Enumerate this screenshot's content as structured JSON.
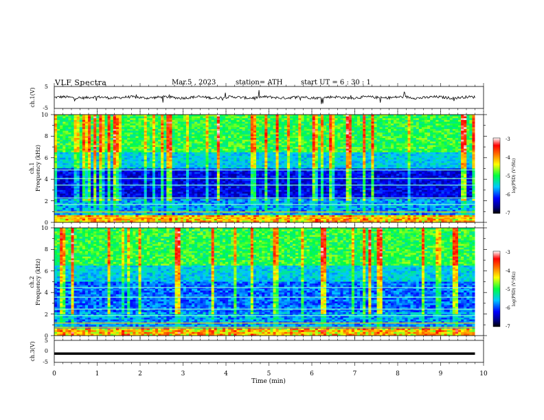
{
  "header": {
    "title": "VLF  Spectra",
    "date": "Mar.5  , 2023",
    "station": "station= ATH",
    "start": "start  UT  =   6  : 30 : 1"
  },
  "colorbar": {
    "label": "log(PSD) (V²/Hz)",
    "ticks": [
      "-3",
      "-4",
      "-5",
      "-6",
      "-7"
    ]
  },
  "chart_data": [
    {
      "type": "line",
      "name": "ch1-waveform",
      "ylabel": "ch.1(V)",
      "ylim": [
        -5,
        5
      ],
      "y_ticks": [
        "5",
        "-5"
      ],
      "x_range": [
        0,
        9.8
      ],
      "level": 0
    },
    {
      "type": "heatmap",
      "name": "ch1-spectrogram",
      "ylabel_top": "ch.1",
      "ylabel": "Frequency  (kHz)",
      "ylim": [
        0,
        10
      ],
      "y_ticks": [
        "0",
        "2",
        "4",
        "6",
        "8",
        "10"
      ],
      "x_range": [
        0,
        9.8
      ],
      "zlim": [
        -7,
        -3
      ]
    },
    {
      "type": "heatmap",
      "name": "ch2-spectrogram",
      "ylabel_top": "ch.2",
      "ylabel": "Frequency  (kHz)",
      "ylim": [
        0,
        10
      ],
      "y_ticks": [
        "0",
        "2",
        "4",
        "6",
        "8",
        "10"
      ],
      "x_range": [
        0,
        9.8
      ],
      "zlim": [
        -7,
        -3
      ]
    },
    {
      "type": "line",
      "name": "ch3-waveform",
      "ylabel": "ch.3(V)",
      "ylim": [
        -5,
        5
      ],
      "y_ticks": [
        "5",
        "0",
        "-5"
      ],
      "x_range": [
        0,
        9.8
      ],
      "level": -1
    }
  ],
  "x_axis": {
    "label": "Time  (min)",
    "ticks": [
      "0",
      "1",
      "2",
      "3",
      "4",
      "5",
      "6",
      "7",
      "8",
      "9",
      "10"
    ],
    "xlim": [
      0,
      10
    ]
  }
}
